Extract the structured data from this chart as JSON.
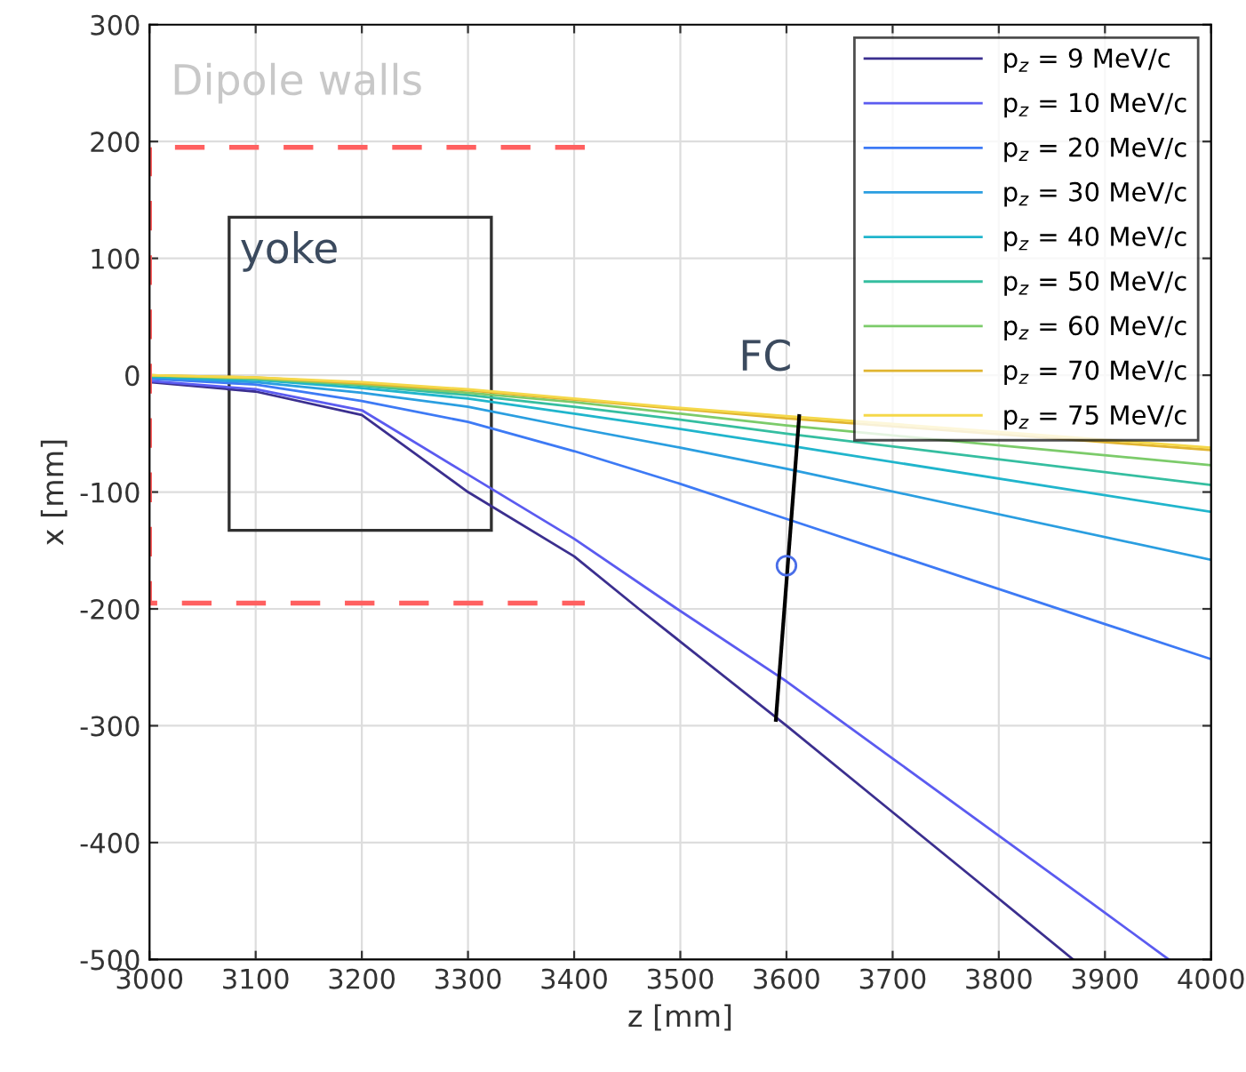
{
  "chart_data": {
    "type": "line",
    "xlabel": "z [mm]",
    "ylabel": "x [mm]",
    "xlim": [
      3000,
      4000
    ],
    "xticks": [
      3000,
      3100,
      3200,
      3300,
      3400,
      3500,
      3600,
      3700,
      3800,
      3900,
      4000
    ],
    "ylim": [
      -500,
      300
    ],
    "yticks": [
      -500,
      -400,
      -300,
      -200,
      -100,
      0,
      100,
      200,
      300
    ],
    "grid": true,
    "legend": "top right",
    "series": [
      {
        "name": "p$_{z}$ = 9 MeV/c",
        "color": "#3b2f8f",
        "x": [
          3000,
          3100,
          3200,
          3300,
          3400,
          3461,
          3500,
          3600,
          3700,
          3800,
          3870
        ],
        "values": [
          -6,
          -14,
          -34,
          -100,
          -155,
          -200,
          -228,
          -300,
          -374,
          -448,
          -500
        ]
      },
      {
        "name": "p$_{z}$ = 10 MeV/c",
        "color": "#5b5bf0",
        "x": [
          3000,
          3100,
          3200,
          3300,
          3400,
          3497,
          3600,
          3700,
          3800,
          3900,
          3960
        ],
        "values": [
          -5,
          -12,
          -30,
          -85,
          -140,
          -200,
          -262,
          -328,
          -394,
          -460,
          -500
        ]
      },
      {
        "name": "p$_{z}$ = 20 MeV/c",
        "color": "#3d7af5",
        "x": [
          3000,
          3100,
          3200,
          3300,
          3400,
          3500,
          3600,
          3900,
          4000
        ],
        "values": [
          -3,
          -8,
          -22,
          -40,
          -65,
          -93,
          -123,
          -213,
          -243
        ]
      },
      {
        "name": "p$_{z}$ = 30 MeV/c",
        "color": "#2a9ee0",
        "x": [
          3000,
          3100,
          3200,
          3300,
          3400,
          3500,
          3600,
          4000
        ],
        "values": [
          -2,
          -6,
          -15,
          -27,
          -45,
          -62,
          -80,
          -158
        ]
      },
      {
        "name": "p$_{z}$ = 40 MeV/c",
        "color": "#20b5cc",
        "x": [
          3000,
          3100,
          3200,
          3300,
          3400,
          3500,
          3600,
          4000
        ],
        "values": [
          -1,
          -4,
          -11,
          -20,
          -33,
          -46,
          -60,
          -117
        ]
      },
      {
        "name": "p$_{z}$ = 50 MeV/c",
        "color": "#35bea0",
        "x": [
          3000,
          3100,
          3200,
          3300,
          3400,
          3500,
          3600,
          4000
        ],
        "values": [
          -1,
          -3,
          -9,
          -17,
          -27,
          -38,
          -50,
          -94
        ]
      },
      {
        "name": "p$_{z}$ = 60 MeV/c",
        "color": "#7ccb6a",
        "x": [
          3000,
          3100,
          3200,
          3300,
          3400,
          3500,
          3600,
          4000
        ],
        "values": [
          0,
          -3,
          -8,
          -15,
          -23,
          -33,
          -43,
          -77
        ]
      },
      {
        "name": "p$_{z}$ = 70 MeV/c",
        "color": "#e0b430",
        "x": [
          3000,
          3100,
          3200,
          3300,
          3400,
          3500,
          3600,
          4000
        ],
        "values": [
          0,
          -2,
          -7,
          -13,
          -21,
          -29,
          -37,
          -64
        ]
      },
      {
        "name": "p$_{z}$ = 75 MeV/c",
        "color": "#f5d84a",
        "x": [
          3000,
          3100,
          3200,
          3300,
          3400,
          3500,
          3600,
          4000
        ],
        "values": [
          0,
          -2,
          -6,
          -12,
          -20,
          -28,
          -35,
          -62
        ]
      },
      {
        "color": "#ff6060",
        "line_style": "dashed",
        "x": [
          3410,
          3000,
          3000,
          3410
        ],
        "values": [
          195,
          195,
          -195,
          -195
        ]
      },
      {
        "color": "#000000",
        "x": [
          3612,
          3590
        ],
        "values": [
          -35,
          -295
        ]
      },
      {
        "type": "scatter",
        "marker": "circle",
        "color": "#4a6ee8",
        "x": [
          3600
        ],
        "values": [
          -163
        ]
      }
    ],
    "annotations": [
      "Dipole walls",
      "yoke",
      "FC"
    ]
  }
}
